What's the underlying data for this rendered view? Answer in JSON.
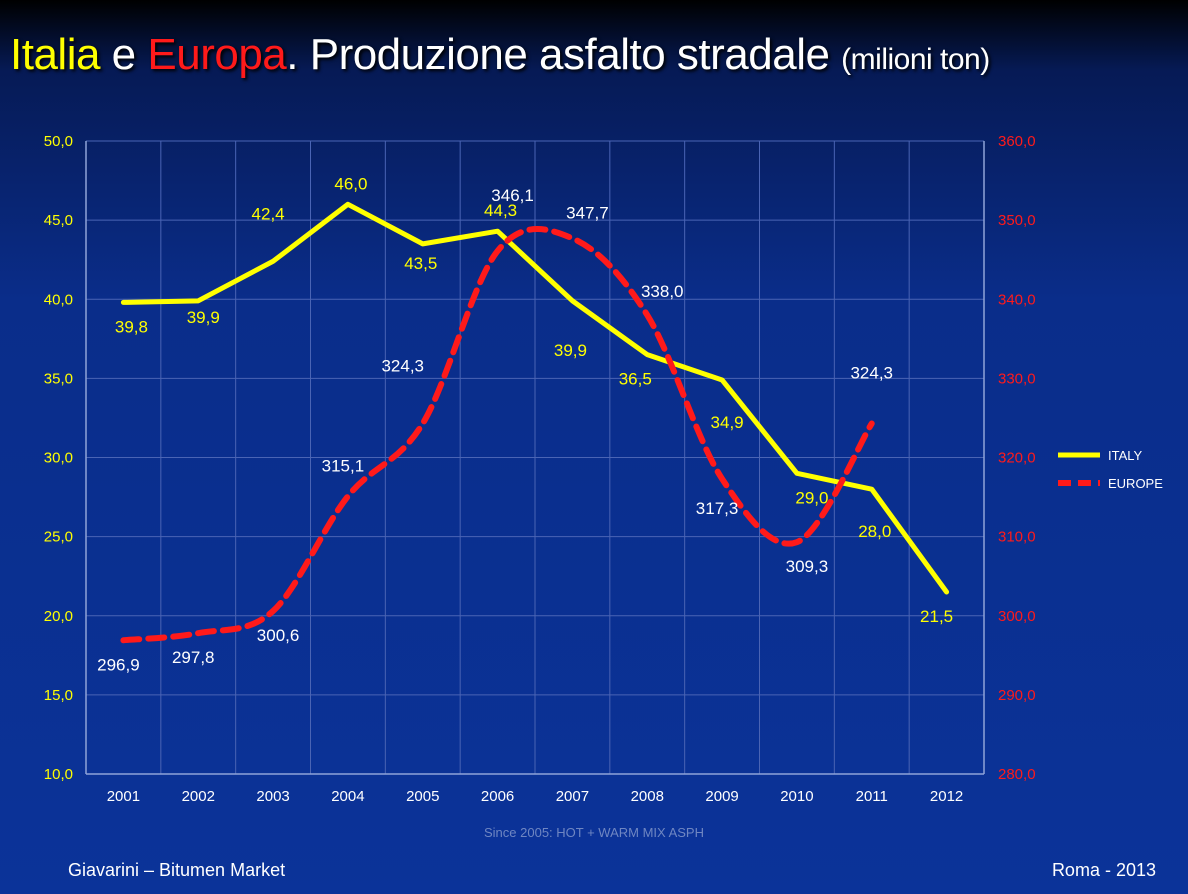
{
  "title": {
    "part1": "Italia",
    "part2": " e ",
    "part3": "Europa",
    "part4": ". Produzione asfalto stradale",
    "unit": "(milioni ton)"
  },
  "note": "Since 2005: HOT + WARM MIX ASPH",
  "footer": {
    "left": "Giavarini – Bitumen Market",
    "right": "Roma - 2013"
  },
  "colors": {
    "italy": "#ffff00",
    "europe": "#ff1a1a",
    "left_axis_text": "#ffff00",
    "right_axis_text": "#ff1a1a",
    "grid": "#4a64b4",
    "data_label_white": "#ffffff"
  },
  "chart_data": {
    "type": "line",
    "categories": [
      "2001",
      "2002",
      "2003",
      "2004",
      "2005",
      "2006",
      "2007",
      "2008",
      "2009",
      "2010",
      "2011",
      "2012"
    ],
    "series": [
      {
        "name": "ITALY",
        "axis": "left",
        "values": [
          39.8,
          39.9,
          42.4,
          46.0,
          43.5,
          44.3,
          39.9,
          36.5,
          34.9,
          29.0,
          28.0,
          21.5
        ],
        "labels": [
          "39,8",
          "39,9",
          "42,4",
          "46,0",
          "43,5",
          "44,3",
          "39,9",
          "36,5",
          "34,9",
          "29,0",
          "28,0",
          "21,5"
        ],
        "style": "solid"
      },
      {
        "name": "EUROPE",
        "axis": "right",
        "values": [
          296.9,
          297.8,
          300.6,
          315.1,
          324.3,
          346.1,
          347.7,
          338.0,
          317.3,
          309.3,
          324.3,
          null
        ],
        "labels": [
          "296,9",
          "297,8",
          "300,6",
          "315,1",
          "324,3",
          "346,1",
          "347,7",
          "338,0",
          "317,3",
          "309,3",
          "324,3",
          ""
        ],
        "style": "dashed"
      }
    ],
    "y_left": {
      "min": 10,
      "max": 50,
      "step": 5,
      "tick_labels": [
        "10,0",
        "15,0",
        "20,0",
        "25,0",
        "30,0",
        "35,0",
        "40,0",
        "45,0",
        "50,0"
      ]
    },
    "y_right": {
      "min": 280,
      "max": 360,
      "step": 10,
      "tick_labels": [
        "280,0",
        "290,0",
        "300,0",
        "310,0",
        "320,0",
        "330,0",
        "340,0",
        "350,0",
        "360,0"
      ]
    },
    "grid": true,
    "legend": "right"
  }
}
